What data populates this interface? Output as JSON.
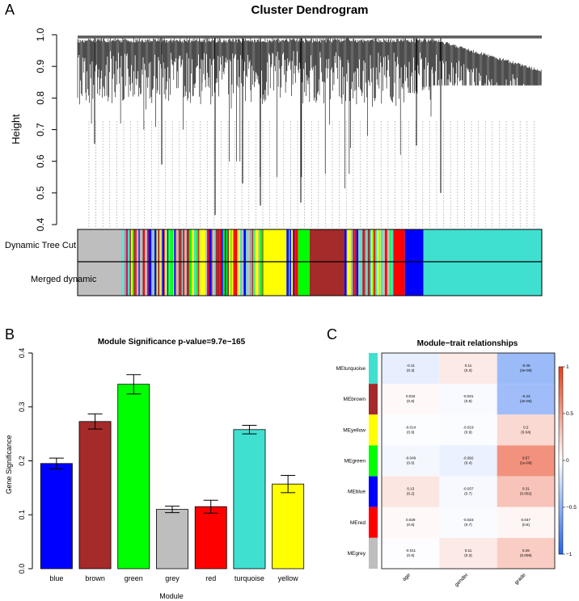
{
  "panels": {
    "a": {
      "letter": "A"
    },
    "b": {
      "letter": "B"
    },
    "c": {
      "letter": "C"
    }
  },
  "colors": {
    "blue": "#0000ff",
    "brown": "#a52a2a",
    "green": "#00ff00",
    "grey": "#bebebe",
    "red": "#ff0000",
    "turquoise": "#40e0d0",
    "yellow": "#ffff00"
  },
  "chart_data": [
    {
      "type": "dendrogram",
      "title": "Cluster Dendrogram",
      "ylabel": "Height",
      "ylim": [
        0.4,
        1.0
      ],
      "yticks": [
        0.4,
        0.5,
        0.6,
        0.7,
        0.8,
        0.9,
        1.0
      ],
      "color_rows": [
        "Dynamic Tree Cut",
        "Merged dynamic"
      ],
      "module_blocks": [
        {
          "module": "grey",
          "fraction": 0.095
        },
        {
          "module": "mixed",
          "fraction": 0.305
        },
        {
          "module": "yellow",
          "fraction": 0.05
        },
        {
          "module": "mixed",
          "fraction": 0.025
        },
        {
          "module": "green",
          "fraction": 0.025
        },
        {
          "module": "brown",
          "fraction": 0.075
        },
        {
          "module": "mixed",
          "fraction": 0.105
        },
        {
          "module": "red",
          "fraction": 0.025
        },
        {
          "module": "blue",
          "fraction": 0.04
        },
        {
          "module": "turquoise",
          "fraction": 0.255
        }
      ]
    },
    {
      "type": "bar",
      "title": "Module Significance p-value=9.7e−165",
      "xlabel": "Module",
      "ylabel": "Gene Significance",
      "ylim": [
        0,
        0.4
      ],
      "yticks": [
        0.0,
        0.1,
        0.2,
        0.3,
        0.4
      ],
      "categories": [
        "blue",
        "brown",
        "green",
        "grey",
        "red",
        "turquoise",
        "yellow"
      ],
      "values": [
        0.195,
        0.273,
        0.342,
        0.11,
        0.115,
        0.258,
        0.157
      ],
      "errors": [
        0.01,
        0.014,
        0.018,
        0.006,
        0.012,
        0.008,
        0.016
      ]
    },
    {
      "type": "heatmap",
      "title": "Module−trait relationships",
      "rows": [
        "MEturquoise",
        "MEbrown",
        "MEyellow",
        "MEgreen",
        "MEblue",
        "MEred",
        "MEgrey"
      ],
      "row_modules": [
        "turquoise",
        "brown",
        "yellow",
        "green",
        "blue",
        "red",
        "grey"
      ],
      "columns": [
        "age",
        "gender",
        "grade"
      ],
      "correlations": [
        [
          -0.11,
          0.11,
          -0.45
        ],
        [
          0.032,
          -0.031,
          -0.43
        ],
        [
          -0.014,
          -0.019,
          0.2
        ],
        [
          -0.049,
          -0.092,
          0.57
        ],
        [
          0.13,
          -0.037,
          0.31
        ],
        [
          0.029,
          -0.023,
          0.047
        ],
        [
          -0.011,
          0.11,
          0.26
        ]
      ],
      "cell_text": [
        [
          "-0.11\n(0.3)",
          "0.11\n(0.3)",
          "-0.45\n(4e-06)"
        ],
        [
          "0.032\n(0.8)",
          "-0.031\n(0.8)",
          "-0.43\n(4e-05)"
        ],
        [
          "-0.014\n(0.9)",
          "-0.019\n(0.9)",
          "0.2\n(0.04)"
        ],
        [
          "-0.049\n(0.6)",
          "-0.092\n(0.4)",
          "0.57\n(1e-09)"
        ],
        [
          "0.13\n(0.2)",
          "-0.037\n(0.7)",
          "0.31\n(0.002)"
        ],
        [
          "0.029\n(0.8)",
          "-0.023\n(0.7)",
          "0.047\n(0.6)"
        ],
        [
          "-0.011\n(0.9)",
          "0.11\n(0.3)",
          "0.26\n(0.009)"
        ]
      ],
      "color_range": [
        -1,
        1
      ],
      "colorbar_ticks": [
        -1,
        -0.5,
        0,
        0.5,
        1
      ],
      "colorbar_tick_labels": [
        "−1",
        "−0.5",
        "0",
        "0.5",
        "1"
      ],
      "colorscale": [
        "#2166f0",
        "#ffffff",
        "#e8401c"
      ]
    }
  ]
}
